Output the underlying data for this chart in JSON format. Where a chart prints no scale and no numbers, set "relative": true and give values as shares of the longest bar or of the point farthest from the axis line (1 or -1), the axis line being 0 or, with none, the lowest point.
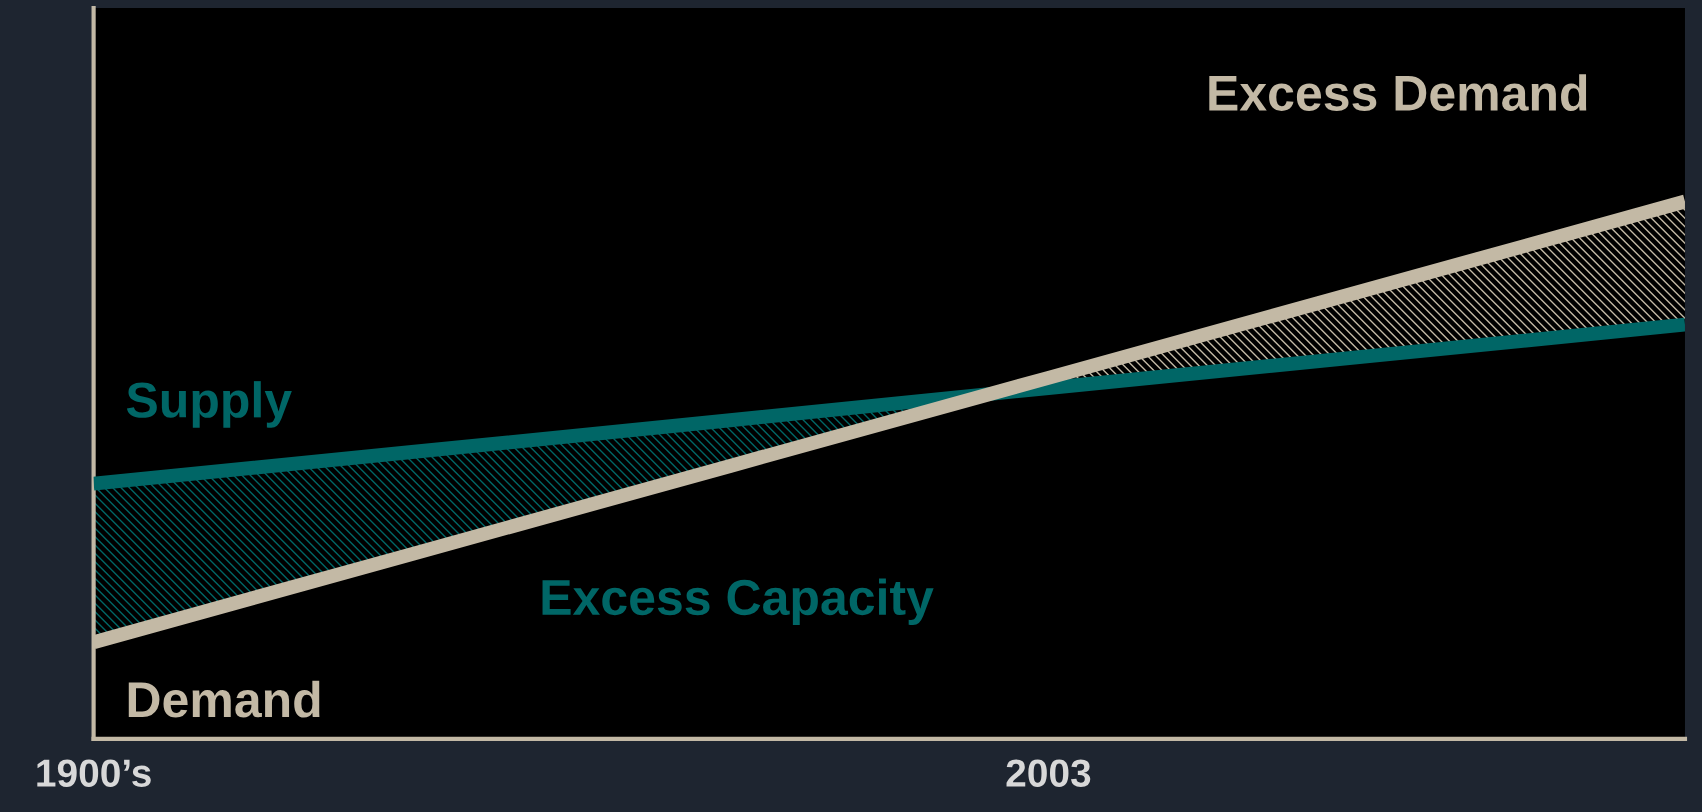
{
  "chart_data": {
    "type": "line",
    "relative": true,
    "categories": [
      "1900’s",
      null,
      null,
      "2003",
      null,
      null
    ],
    "series": [
      {
        "name": "Supply",
        "color": "#006666",
        "values": [
          0.475,
          0.534,
          0.593,
          0.653,
          0.712,
          0.771
        ]
      },
      {
        "name": "Demand",
        "color": "#c3b9a5",
        "values": [
          0.18,
          0.344,
          0.508,
          0.672,
          0.836,
          1.0
        ]
      }
    ],
    "annotations": [
      "Excess Capacity",
      "Excess Demand"
    ],
    "grid": false,
    "legend": false,
    "marker": "none",
    "line_style": "solid"
  }
}
